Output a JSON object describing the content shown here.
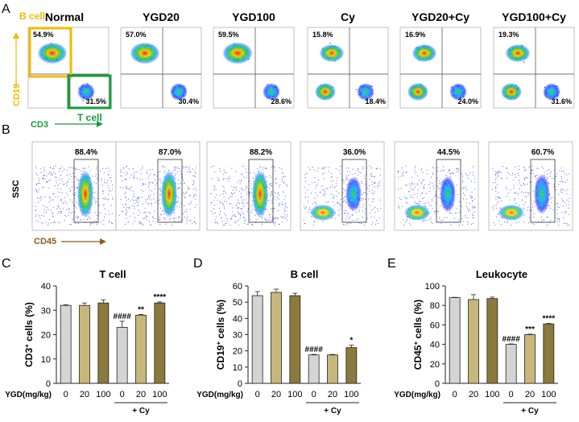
{
  "panel_labels": [
    "A",
    "B",
    "C",
    "D",
    "E"
  ],
  "groups": [
    "Normal",
    "YGD20",
    "YGD100",
    "Cy",
    "YGD20+Cy",
    "YGD100+Cy"
  ],
  "panelA": {
    "y_axis": "CD19",
    "x_axis": "CD3",
    "b_gate": "B cell",
    "t_gate": "T cell",
    "b_pct": [
      "54.9%",
      "57.0%",
      "59.5%",
      "15.8%",
      "16.9%",
      "19.3%"
    ],
    "t_pct": [
      "31.5%",
      "30.4%",
      "28.6%",
      "18.4%",
      "24.0%",
      "31.6%"
    ]
  },
  "panelB": {
    "y_axis": "SSC",
    "x_axis": "CD45",
    "pct": [
      "88.4%",
      "87.0%",
      "88.2%",
      "36.0%",
      "44.5%",
      "60.7%"
    ]
  },
  "colors": {
    "bcell": "#f5b800",
    "tcell": "#1a9a3a",
    "cd45": "#8b5e1a",
    "bar0": "#d4d4d4",
    "bar20": "#c8b77a",
    "bar100": "#8c7a3c"
  },
  "chart_data": [
    {
      "type": "bar",
      "title": "T cell",
      "ylabel_main": "CD3",
      "ylabel_sup": "+",
      "ylabel_rest": " cells (%)",
      "categories": [
        "0",
        "20",
        "100",
        "0",
        "20",
        "100"
      ],
      "values": [
        32,
        32,
        33,
        23,
        28,
        33
      ],
      "errors": [
        0.3,
        1,
        1.3,
        2.5,
        0.3,
        0.4
      ],
      "sig": [
        "",
        "",
        "",
        "####",
        "**",
        "****"
      ],
      "ylim": [
        0,
        40
      ],
      "yticks": [
        "0",
        "10",
        "20",
        "30",
        "40"
      ],
      "xlabel": "YGD(mg/kg)",
      "group_label": "+ Cy"
    },
    {
      "type": "bar",
      "title": "B cell",
      "ylabel_main": "CD19",
      "ylabel_sup": "+",
      "ylabel_rest": " cells (%)",
      "categories": [
        "0",
        "20",
        "100",
        "0",
        "20",
        "100"
      ],
      "values": [
        54,
        56,
        54,
        17.5,
        17.5,
        22
      ],
      "errors": [
        2.5,
        2,
        1.5,
        0.3,
        0.3,
        1.5
      ],
      "sig": [
        "",
        "",
        "",
        "####",
        "",
        "*"
      ],
      "ylim": [
        0,
        60
      ],
      "yticks": [
        "0",
        "10",
        "20",
        "30",
        "40",
        "50",
        "60"
      ],
      "xlabel": "YGD(mg/kg)",
      "group_label": "+ Cy"
    },
    {
      "type": "bar",
      "title": "Leukocyte",
      "ylabel_main": "CD45",
      "ylabel_sup": "+",
      "ylabel_rest": " cells (%)",
      "categories": [
        "0",
        "20",
        "100",
        "0",
        "20",
        "100"
      ],
      "values": [
        88,
        86,
        87,
        40,
        50,
        61
      ],
      "errors": [
        0.3,
        5,
        1.5,
        0.5,
        0.5,
        0.5
      ],
      "sig": [
        "",
        "",
        "",
        "####",
        "***",
        "****"
      ],
      "ylim": [
        0,
        100
      ],
      "yticks": [
        "0",
        "20",
        "40",
        "60",
        "80",
        "100"
      ],
      "xlabel": "YGD(mg/kg)",
      "group_label": "+ Cy"
    }
  ]
}
